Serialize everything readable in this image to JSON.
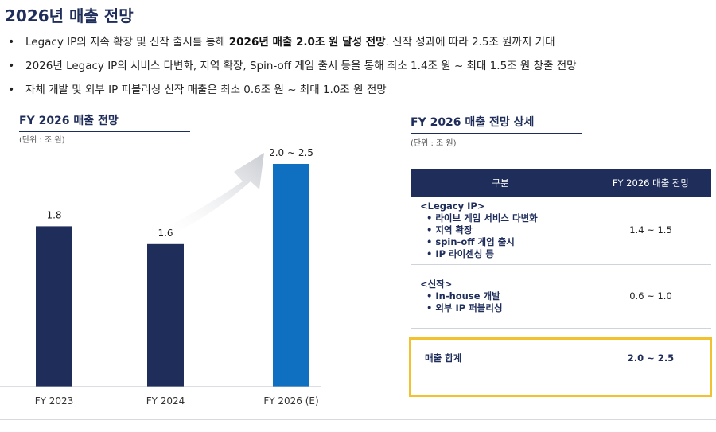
{
  "page": {
    "title": "2026년 매출 전망"
  },
  "bullets": [
    {
      "pre": "Legacy IP의 지속 확장 및 신작 출시를 통해 ",
      "bold": "2026년 매출 2.0조 원 달성 전망",
      "post": ". 신작 성과에 따라 2.5조 원까지 기대"
    },
    {
      "pre": "2026년 Legacy IP의 서비스 다변화, 지역 확장, Spin-off 게임 출시 등을 통해  최소 1.4조 원 ~ 최대 1.5조 원 창출 전망",
      "bold": "",
      "post": ""
    },
    {
      "pre": "자체 개발 및 외부 IP 퍼블리싱 신작 매출은 최소 0.6조 원 ~ 최대 1.0조 원 전망",
      "bold": "",
      "post": ""
    }
  ],
  "left_section": {
    "title": "FY 2026 매출 전망",
    "unit": "(단위 : 조 원)"
  },
  "right_section": {
    "title": "FY 2026 매출 전망 상세",
    "unit": "(단위 : 조 원)"
  },
  "chart_data": {
    "type": "bar",
    "categories": [
      "FY 2023",
      "FY 2024",
      "FY 2026 (E)"
    ],
    "values": [
      1.8,
      1.6,
      2.5
    ],
    "value_labels": [
      "1.8",
      "1.6",
      "2.0 ~ 2.5"
    ],
    "colors": [
      "#1f2d5a",
      "#1f2d5a",
      "#0f6fc0"
    ],
    "growth_arrow": true,
    "axis_color": "#b9bdc7"
  },
  "table": {
    "headers": [
      "구분",
      "FY 2026 매출 전망"
    ],
    "rows": [
      {
        "head": "<Legacy IP>",
        "items": [
          "• 라이브 게임 서비스 다변화",
          "• 지역 확장",
          "• spin-off 게임 출시",
          "• IP 라이센싱 등"
        ],
        "value": "1.4 ~ 1.5"
      },
      {
        "head": "<신작>",
        "items": [
          "• In-house 개발",
          "• 외부 IP 퍼블리싱"
        ],
        "value": "0.6 ~ 1.0"
      }
    ],
    "total": {
      "label": "매출 합계",
      "value": "2.0 ~ 2.5"
    }
  },
  "colors": {
    "navy": "#1f2d5a",
    "blue": "#0f6fc0",
    "highlight": "#f2c12e"
  }
}
